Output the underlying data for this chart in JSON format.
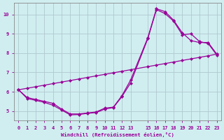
{
  "background_color": "#d0eef0",
  "grid_color": "#b0c8d0",
  "line_color": "#990099",
  "xlabel": "Windchill (Refroidissement éolien,°C)",
  "xlim": [
    -0.5,
    23.5
  ],
  "ylim": [
    4.5,
    10.6
  ],
  "yticks": [
    5,
    6,
    7,
    8,
    9,
    10
  ],
  "xtick_positions": [
    0,
    1,
    2,
    3,
    4,
    5,
    6,
    7,
    8,
    9,
    10,
    11,
    12,
    13,
    15,
    16,
    17,
    18,
    19,
    20,
    21,
    22,
    23
  ],
  "xtick_labels": [
    "0",
    "1",
    "2",
    "3",
    "4",
    "5",
    "6",
    "7",
    "8",
    "9",
    "10",
    "11",
    "12",
    "13",
    "15",
    "16",
    "17",
    "18",
    "19",
    "20",
    "21",
    "22",
    "23"
  ],
  "line1_x": [
    0,
    1,
    2,
    3,
    4,
    5,
    6,
    7,
    8,
    9,
    10,
    11,
    12,
    13,
    15,
    16,
    17,
    18,
    19,
    20,
    21,
    22,
    23
  ],
  "line1_y": [
    6.1,
    5.7,
    5.6,
    5.5,
    5.4,
    5.1,
    4.85,
    4.85,
    4.9,
    4.95,
    5.15,
    5.2,
    5.8,
    6.6,
    8.8,
    10.3,
    10.15,
    9.7,
    9.05,
    8.65,
    8.55,
    8.55,
    7.95
  ],
  "line2_x": [
    0,
    1,
    2,
    3,
    4,
    5,
    6,
    7,
    8,
    9,
    10,
    11,
    12,
    13,
    15,
    16,
    17,
    18,
    19,
    20,
    21,
    22,
    23
  ],
  "line2_y": [
    6.1,
    5.65,
    5.55,
    5.45,
    5.3,
    5.05,
    4.8,
    4.82,
    4.88,
    4.92,
    5.1,
    5.18,
    5.75,
    6.45,
    8.75,
    10.25,
    10.05,
    9.65,
    8.95,
    9.0,
    8.6,
    8.5,
    7.9
  ],
  "line3_x": [
    0,
    1,
    2,
    3,
    4,
    5,
    6,
    7,
    8,
    9,
    10,
    11,
    12,
    13,
    15,
    16,
    17,
    18,
    19,
    20,
    21,
    22,
    23
  ],
  "line3_y": [
    6.1,
    6.18,
    6.26,
    6.34,
    6.42,
    6.5,
    6.58,
    6.66,
    6.74,
    6.82,
    6.9,
    6.98,
    7.06,
    7.14,
    7.3,
    7.38,
    7.46,
    7.54,
    7.62,
    7.7,
    7.78,
    7.86,
    7.95
  ]
}
